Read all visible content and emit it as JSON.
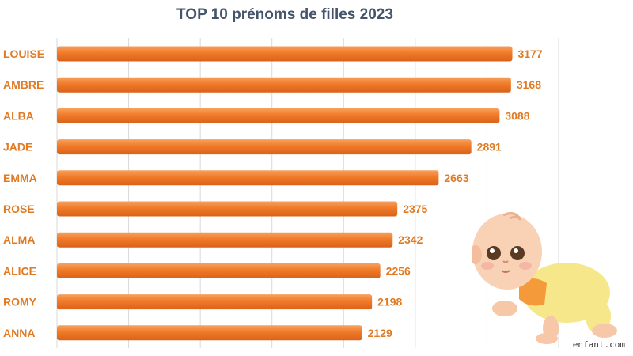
{
  "chart_data": {
    "type": "bar",
    "orientation": "horizontal",
    "title": "TOP 10 prénoms de filles 2023",
    "categories": [
      "LOUISE",
      "AMBRE",
      "ALBA",
      "JADE",
      "EMMA",
      "ROSE",
      "ALMA",
      "ALICE",
      "ROMY",
      "ANNA"
    ],
    "values": [
      3177,
      3168,
      3088,
      2891,
      2663,
      2375,
      2342,
      2256,
      2198,
      2129
    ],
    "xlim": [
      0,
      3500
    ],
    "grid": true,
    "bar_color": "#F07A28",
    "label_color": "#E07B24"
  },
  "watermark": "enfant.com",
  "illustration": "crawling-baby"
}
